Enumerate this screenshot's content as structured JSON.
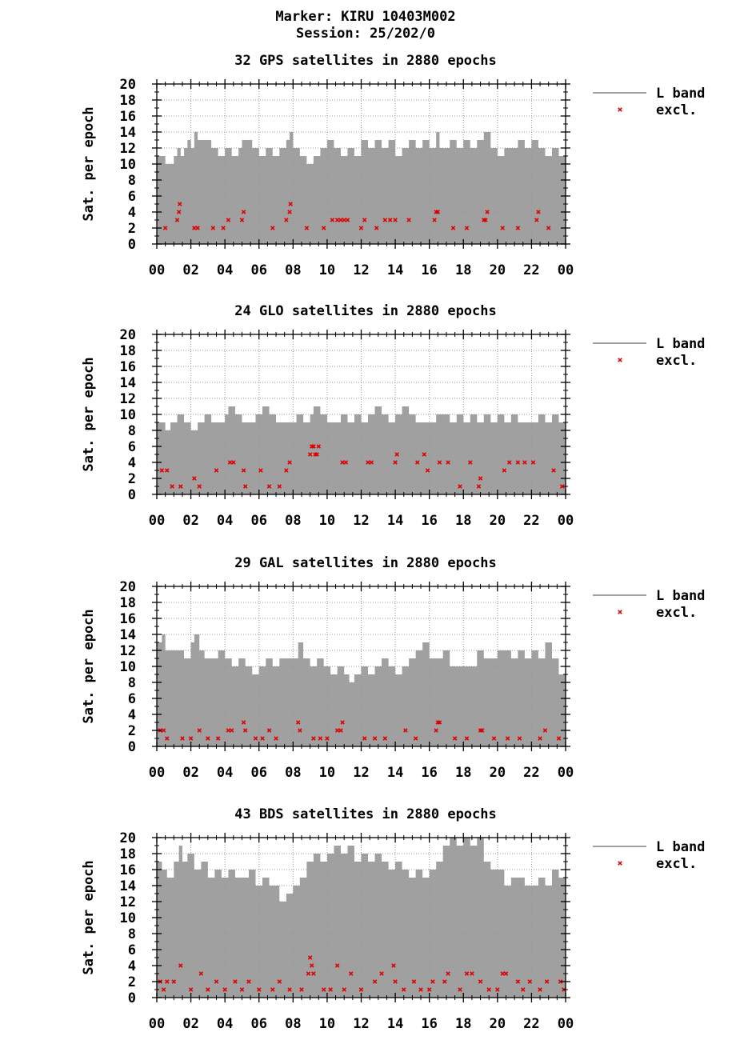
{
  "header": {
    "line1": "Marker: KIRU 10403M002",
    "line2": "Session: 25/202/0"
  },
  "colors": {
    "band": "#a0a0a0",
    "excl": "#e00000",
    "grid": "#999999"
  },
  "chart_data": [
    {
      "type": "area",
      "title": "32 GPS satellites in 2880 epochs",
      "ylabel": "Sat. per epoch",
      "xlabel": "",
      "ylim": [
        0,
        20
      ],
      "yticks": [
        "0",
        "2",
        "4",
        "6",
        "8",
        "10",
        "12",
        "14",
        "16",
        "18",
        "20"
      ],
      "xticks": [
        "00",
        "02",
        "04",
        "06",
        "08",
        "10",
        "12",
        "14",
        "16",
        "18",
        "20",
        "22",
        "00"
      ],
      "xlim": [
        0,
        24
      ],
      "grid": true,
      "legend_position": "right",
      "series": [
        {
          "name": "L band",
          "type": "area",
          "x": [
            0,
            0.5,
            0.7,
            1,
            1.2,
            1.4,
            1.6,
            1.8,
            2,
            2.2,
            2.4,
            2.8,
            3.2,
            3.6,
            3.8,
            4,
            4.4,
            4.8,
            5.0,
            5.2,
            5.6,
            6,
            6.4,
            6.8,
            7.2,
            7.6,
            7.8,
            8,
            8.4,
            8.8,
            9.2,
            9.6,
            10,
            10.4,
            10.8,
            11.2,
            11.6,
            12,
            12.4,
            12.8,
            13.2,
            13.6,
            14,
            14.4,
            14.8,
            15.2,
            15.6,
            16,
            16.4,
            16.6,
            16.8,
            17.2,
            17.6,
            18,
            18.4,
            18.8,
            19.2,
            19.6,
            20,
            20.4,
            20.8,
            21.2,
            21.6,
            22,
            22.4,
            22.8,
            23.2,
            23.6,
            24
          ],
          "y": [
            11,
            10,
            10,
            11,
            12,
            11,
            12,
            13,
            12,
            14,
            13,
            13,
            12,
            11,
            11,
            12,
            11,
            12,
            13,
            13,
            12,
            11,
            12,
            11,
            12,
            13,
            14,
            12,
            11,
            10,
            11,
            12,
            13,
            12,
            11,
            12,
            11,
            13,
            12,
            13,
            12,
            13,
            11,
            12,
            13,
            12,
            13,
            12,
            14,
            12,
            12,
            13,
            12,
            13,
            12,
            13,
            14,
            12,
            11,
            12,
            12,
            13,
            12,
            13,
            12,
            11,
            12,
            11,
            11
          ]
        },
        {
          "name": "excl.",
          "type": "scatter",
          "x": [
            1.2,
            1.3,
            1.35,
            3.3,
            3.9,
            4.2,
            5.0,
            5.1,
            7.6,
            7.8,
            7.85,
            10.3,
            10.6,
            10.8,
            11.0,
            11.2,
            12.2,
            12.9,
            13.4,
            13.7,
            14.0,
            14.8,
            16.3,
            16.4,
            16.5,
            19.2,
            19.3,
            19.4,
            22.3,
            22.4,
            0.5,
            2.2,
            2.4,
            6.8,
            8.8,
            9.8,
            12.0,
            17.4,
            18.2,
            20.3,
            21.2,
            23.0
          ],
          "y": [
            3,
            4,
            5,
            2,
            2,
            3,
            3,
            4,
            3,
            4,
            5,
            3,
            3,
            3,
            3,
            3,
            3,
            2,
            3,
            3,
            3,
            3,
            3,
            4,
            4,
            3,
            3,
            4,
            3,
            4,
            2,
            2,
            2,
            2,
            2,
            2,
            2,
            2,
            2,
            2,
            2,
            2
          ]
        }
      ]
    },
    {
      "type": "area",
      "title": "24 GLO satellites in 2880 epochs",
      "ylabel": "Sat. per epoch",
      "xlabel": "",
      "ylim": [
        0,
        20
      ],
      "yticks": [
        "0",
        "2",
        "4",
        "6",
        "8",
        "10",
        "12",
        "14",
        "16",
        "18",
        "20"
      ],
      "xticks": [
        "00",
        "02",
        "04",
        "06",
        "08",
        "10",
        "12",
        "14",
        "16",
        "18",
        "20",
        "22",
        "00"
      ],
      "xlim": [
        0,
        24
      ],
      "grid": true,
      "legend_position": "right",
      "series": [
        {
          "name": "L band",
          "type": "area",
          "x": [
            0,
            0.5,
            0.8,
            1.2,
            1.6,
            2,
            2.4,
            2.8,
            3.2,
            3.6,
            4,
            4.2,
            4.6,
            5,
            5.4,
            5.8,
            6.2,
            6.6,
            7,
            7.4,
            7.8,
            8.2,
            8.6,
            9,
            9.2,
            9.6,
            10,
            10.4,
            10.8,
            11.2,
            11.6,
            12,
            12.4,
            12.8,
            13.2,
            13.6,
            14,
            14.4,
            14.8,
            15.2,
            15.6,
            16,
            16.4,
            16.8,
            17.2,
            17.6,
            18,
            18.4,
            18.8,
            19.2,
            19.6,
            20,
            20.4,
            20.8,
            21.2,
            21.6,
            22,
            22.4,
            22.8,
            23.2,
            23.6,
            24
          ],
          "y": [
            9,
            8,
            9,
            10,
            9,
            8,
            9,
            10,
            9,
            9,
            10,
            11,
            10,
            9,
            9,
            10,
            11,
            10,
            9,
            9,
            9,
            10,
            9,
            10,
            11,
            10,
            9,
            9,
            10,
            9,
            10,
            9,
            10,
            11,
            10,
            9,
            10,
            11,
            10,
            9,
            9,
            9,
            10,
            10,
            9,
            10,
            9,
            10,
            9,
            10,
            9,
            10,
            9,
            10,
            9,
            9,
            9,
            10,
            9,
            10,
            9,
            9
          ]
        },
        {
          "name": "excl.",
          "type": "scatter",
          "x": [
            9.0,
            9.1,
            9.2,
            9.3,
            9.4,
            9.5,
            14.0,
            14.1,
            15.7,
            4.3,
            4.5,
            5.1,
            7.8,
            10.9,
            11.1,
            12.4,
            12.6,
            15.3,
            16.6,
            17.1,
            18.4,
            20.7,
            21.2,
            21.6,
            22.1,
            0.3,
            0.6,
            2.2,
            3.5,
            6.1,
            7.6,
            15.9,
            19.0,
            20.4,
            23.3,
            0.9,
            1.4,
            2.5,
            5.2,
            6.6,
            7.2,
            17.8,
            18.9,
            23.8
          ],
          "y": [
            5,
            6,
            6,
            5,
            5,
            6,
            4,
            5,
            5,
            4,
            4,
            3,
            4,
            4,
            4,
            4,
            4,
            4,
            4,
            4,
            4,
            4,
            4,
            4,
            4,
            3,
            3,
            2,
            3,
            3,
            3,
            3,
            2,
            3,
            3,
            1,
            1,
            1,
            1,
            1,
            1,
            1,
            1,
            1
          ]
        }
      ]
    },
    {
      "type": "area",
      "title": "29 GAL satellites in 2880 epochs",
      "ylabel": "Sat. per epoch",
      "xlabel": "",
      "ylim": [
        0,
        20
      ],
      "yticks": [
        "0",
        "2",
        "4",
        "6",
        "8",
        "10",
        "12",
        "14",
        "16",
        "18",
        "20"
      ],
      "xticks": [
        "00",
        "02",
        "04",
        "06",
        "08",
        "10",
        "12",
        "14",
        "16",
        "18",
        "20",
        "22",
        "00"
      ],
      "xlim": [
        0,
        24
      ],
      "grid": true,
      "legend_position": "right",
      "series": [
        {
          "name": "L band",
          "type": "area",
          "x": [
            0,
            0.3,
            0.5,
            1,
            1.4,
            1.6,
            2,
            2.2,
            2.5,
            2.8,
            3.2,
            3.6,
            4,
            4.4,
            4.8,
            5.2,
            5.6,
            6,
            6.4,
            6.8,
            7.2,
            7.6,
            8,
            8.3,
            8.6,
            9,
            9.4,
            9.8,
            10.2,
            10.6,
            11,
            11.3,
            11.6,
            12,
            12.4,
            12.8,
            13.2,
            13.6,
            14,
            14.4,
            14.8,
            15.2,
            15.6,
            16,
            16.4,
            16.8,
            17.2,
            17.6,
            18,
            18.4,
            18.8,
            19.2,
            19.6,
            20,
            20.4,
            20.8,
            21.2,
            21.6,
            22,
            22.4,
            22.8,
            23.2,
            23.6,
            24
          ],
          "y": [
            13,
            14,
            12,
            12,
            12,
            11,
            13,
            14,
            12,
            11,
            11,
            12,
            11,
            10,
            11,
            10,
            9,
            10,
            11,
            10,
            11,
            11,
            11,
            13,
            11,
            10,
            11,
            10,
            9,
            10,
            9,
            8,
            9,
            10,
            9,
            10,
            11,
            10,
            9,
            10,
            11,
            12,
            13,
            11,
            11,
            12,
            10,
            10,
            10,
            10,
            12,
            11,
            11,
            12,
            12,
            11,
            12,
            11,
            12,
            11,
            13,
            11,
            9,
            10
          ]
        },
        {
          "name": "excl.",
          "type": "scatter",
          "x": [
            5.1,
            8.3,
            10.9,
            16.5,
            16.6,
            0.2,
            0.4,
            2.5,
            4.2,
            4.4,
            5.2,
            6.6,
            8.4,
            10.6,
            10.8,
            14.6,
            16.4,
            19.0,
            19.1,
            22.8,
            0.6,
            1.5,
            2.0,
            3.0,
            3.6,
            5.8,
            6.2,
            7.0,
            9.2,
            9.6,
            10.0,
            12.2,
            12.8,
            13.4,
            15.2,
            17.5,
            18.2,
            19.8,
            20.6,
            21.3,
            22.5,
            23.6
          ],
          "y": [
            3,
            3,
            3,
            3,
            3,
            2,
            2,
            2,
            2,
            2,
            2,
            2,
            2,
            2,
            2,
            2,
            2,
            2,
            2,
            2,
            1,
            1,
            1,
            1,
            1,
            1,
            1,
            1,
            1,
            1,
            1,
            1,
            1,
            1,
            1,
            1,
            1,
            1,
            1,
            1,
            1,
            1
          ]
        }
      ]
    },
    {
      "type": "area",
      "title": "43 BDS satellites in 2880 epochs",
      "ylabel": "Sat. per epoch",
      "xlabel": "",
      "ylim": [
        0,
        20
      ],
      "yticks": [
        "0",
        "2",
        "4",
        "6",
        "8",
        "10",
        "12",
        "14",
        "16",
        "18",
        "20"
      ],
      "xticks": [
        "00",
        "02",
        "04",
        "06",
        "08",
        "10",
        "12",
        "14",
        "16",
        "18",
        "20",
        "22",
        "00"
      ],
      "xlim": [
        0,
        24
      ],
      "grid": true,
      "legend_position": "right",
      "series": [
        {
          "name": "L band",
          "type": "area",
          "x": [
            0,
            0.3,
            0.6,
            1,
            1.3,
            1.5,
            1.8,
            2.2,
            2.6,
            3,
            3.4,
            3.8,
            4.2,
            4.6,
            5,
            5.4,
            5.8,
            6.2,
            6.6,
            7,
            7.2,
            7.6,
            8,
            8.4,
            8.8,
            9.2,
            9.6,
            10,
            10.4,
            10.8,
            11.2,
            11.6,
            12,
            12.4,
            12.8,
            13.2,
            13.6,
            14,
            14.4,
            14.8,
            15.2,
            15.6,
            16,
            16.4,
            16.8,
            17.2,
            17.6,
            18,
            18.4,
            18.8,
            19.2,
            19.6,
            20,
            20.4,
            20.8,
            21.2,
            21.6,
            22,
            22.4,
            22.8,
            23.2,
            23.6,
            24
          ],
          "y": [
            17,
            16,
            15,
            17,
            19,
            17,
            18,
            16,
            17,
            15,
            16,
            15,
            16,
            15,
            15,
            16,
            14,
            15,
            14,
            14,
            12,
            13,
            14,
            15,
            17,
            18,
            17,
            18,
            19,
            18,
            19,
            17,
            18,
            17,
            18,
            17,
            16,
            17,
            16,
            15,
            16,
            15,
            16,
            17,
            19,
            20,
            19,
            20,
            19,
            20,
            17,
            16,
            16,
            14,
            15,
            15,
            14,
            14,
            15,
            14,
            16,
            15,
            18
          ]
        },
        {
          "name": "excl.",
          "type": "scatter",
          "x": [
            9.0,
            9.1,
            1.4,
            10.6,
            13.9,
            2.6,
            8.9,
            9.2,
            11.4,
            13.2,
            17.1,
            18.2,
            18.5,
            20.3,
            20.5,
            0.2,
            0.6,
            1.0,
            3.5,
            4.6,
            5.4,
            7.2,
            12.8,
            14.0,
            15.1,
            16.2,
            16.9,
            19.0,
            21.2,
            21.9,
            22.9,
            23.7,
            0.4,
            2.0,
            3.0,
            4.0,
            5.0,
            6.0,
            6.8,
            7.8,
            8.5,
            9.8,
            10.2,
            11.0,
            12.0,
            14.5,
            15.5,
            16.0,
            17.8,
            19.5,
            20.0,
            21.5,
            22.5,
            23.9
          ],
          "y": [
            5,
            4,
            4,
            4,
            4,
            3,
            3,
            3,
            3,
            3,
            3,
            3,
            3,
            3,
            3,
            2,
            2,
            2,
            2,
            2,
            2,
            2,
            2,
            2,
            2,
            2,
            2,
            2,
            2,
            2,
            2,
            2,
            1,
            1,
            1,
            1,
            1,
            1,
            1,
            1,
            1,
            1,
            1,
            1,
            1,
            1,
            1,
            1,
            1,
            1,
            1,
            1,
            1,
            1
          ]
        }
      ]
    }
  ]
}
